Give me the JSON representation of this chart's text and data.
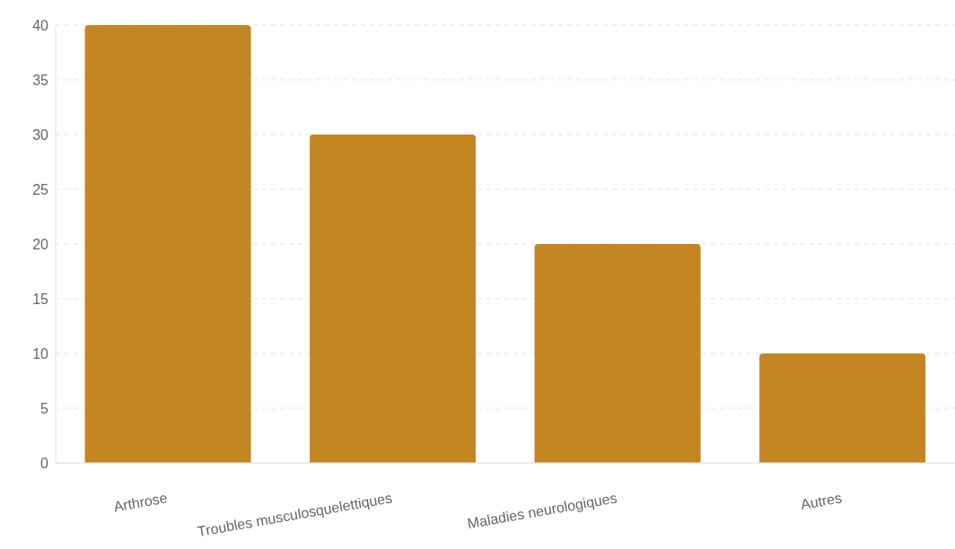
{
  "chart_data": {
    "type": "bar",
    "categories": [
      "Arthrose",
      "Troubles musculosquelettiques",
      "Maladies neurologiques",
      "Autres"
    ],
    "values": [
      40,
      30,
      20,
      10
    ],
    "color": "#c48622",
    "ylim": [
      0,
      40
    ],
    "yticks": [
      0,
      5,
      10,
      15,
      20,
      25,
      30,
      35,
      40
    ],
    "grid": "y"
  }
}
